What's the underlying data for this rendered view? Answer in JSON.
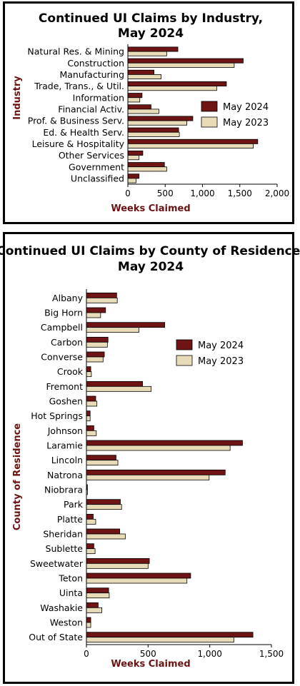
{
  "colors": {
    "may_2024": "#6e1414",
    "may_2023": "#e8dcb8",
    "axis_title": "#6b1212"
  },
  "chart_data": [
    {
      "type": "bar",
      "orientation": "horizontal",
      "title_line1": "Continued UI Claims by Industry,",
      "title_line2": "May 2024",
      "xlabel": "Weeks Claimed",
      "ylabel": "Industry",
      "xlim": [
        0,
        2000
      ],
      "xticks": [
        "0",
        "500",
        "1,000",
        "1,500",
        "2,000"
      ],
      "xtick_values": [
        0,
        500,
        1000,
        1500,
        2000
      ],
      "grid": false,
      "legend_position": "right",
      "categories": [
        "Natural Res. & Mining",
        "Construction",
        "Manufacturing",
        "Trade, Trans., & Util.",
        "Information",
        "Financial Activ.",
        "Prof. & Business Serv.",
        "Ed. & Health Serv.",
        "Leisure & Hospitality",
        "Other Services",
        "Government",
        "Unclassified"
      ],
      "series": [
        {
          "name": "May 2024",
          "values": [
            670,
            1545,
            350,
            1320,
            190,
            310,
            870,
            680,
            1740,
            200,
            490,
            150
          ]
        },
        {
          "name": "May 2023",
          "values": [
            520,
            1425,
            445,
            1190,
            160,
            415,
            790,
            690,
            1680,
            150,
            520,
            110
          ]
        }
      ]
    },
    {
      "type": "bar",
      "orientation": "horizontal",
      "title_line1": "Continued UI Claims by County of Residence,",
      "title_line2": "May 2024",
      "xlabel": "Weeks Claimed",
      "ylabel": "County of Residence",
      "xlim": [
        0,
        1500
      ],
      "xticks": [
        "0",
        "500",
        "1,000",
        "1,500"
      ],
      "xtick_values": [
        0,
        500,
        1000,
        1500
      ],
      "grid": false,
      "legend_position": "right",
      "categories": [
        "Albany",
        "Big Horn",
        "Campbell",
        "Carbon",
        "Converse",
        "Crook",
        "Fremont",
        "Goshen",
        "Hot Springs",
        "Johnson",
        "Laramie",
        "Lincoln",
        "Natrona",
        "Niobrara",
        "Park",
        "Platte",
        "Sheridan",
        "Sublette",
        "Sweetwater",
        "Teton",
        "Uinta",
        "Washakie",
        "Weston",
        "Out of State"
      ],
      "series": [
        {
          "name": "May 2024",
          "values": [
            245,
            155,
            635,
            175,
            145,
            35,
            455,
            75,
            30,
            60,
            1265,
            240,
            1125,
            8,
            275,
            55,
            270,
            60,
            510,
            845,
            180,
            95,
            35,
            1350
          ]
        },
        {
          "name": "May 2023",
          "values": [
            250,
            115,
            425,
            170,
            135,
            40,
            525,
            85,
            30,
            80,
            1165,
            255,
            995,
            8,
            285,
            75,
            315,
            70,
            500,
            815,
            185,
            125,
            35,
            1195
          ]
        }
      ]
    }
  ]
}
